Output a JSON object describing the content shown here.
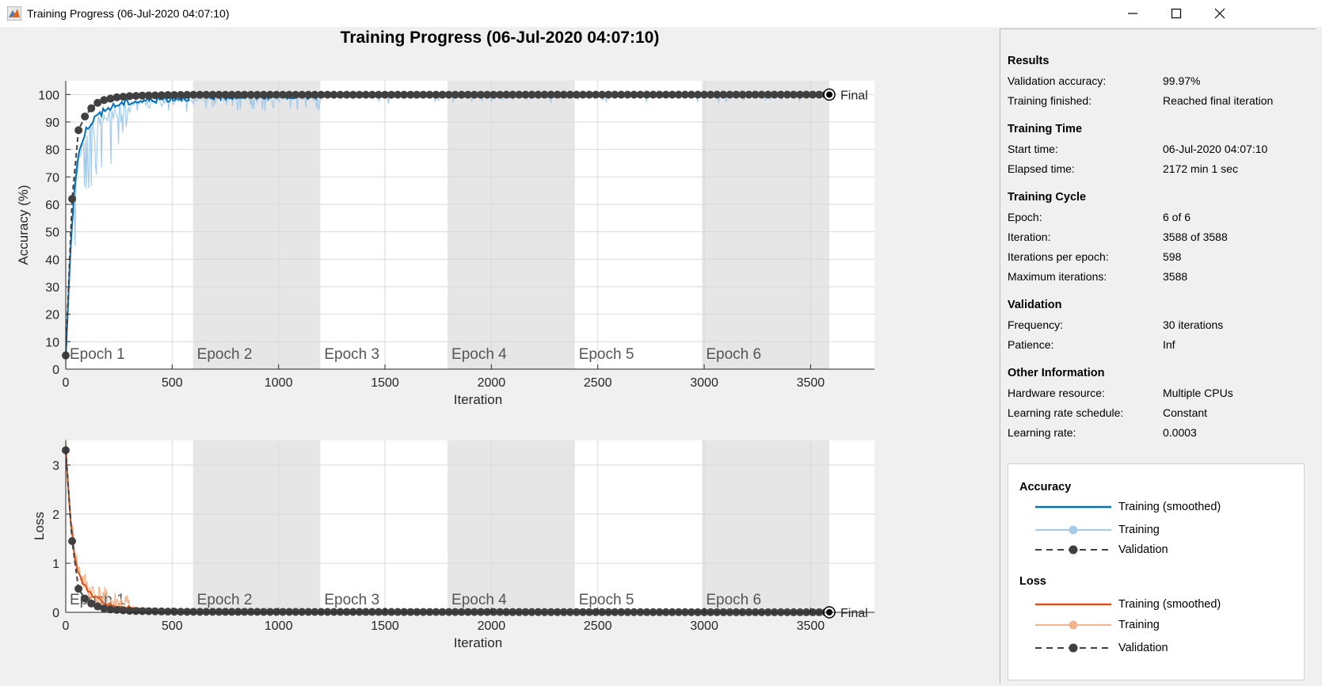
{
  "window": {
    "title": "Training Progress (06-Jul-2020 04:07:10)",
    "controls": [
      "minimize-icon",
      "maximize-icon",
      "close-icon"
    ]
  },
  "main_title": "Training Progress (06-Jul-2020 04:07:10)",
  "colors": {
    "accuracy_smoothed": "#0072bd",
    "accuracy_training": "#a6cbe9",
    "loss_smoothed": "#d95319",
    "loss_training": "#f2b48f",
    "validation": "#404040",
    "epoch_shade": "#e6e6e6"
  },
  "chart_data": [
    {
      "type": "line",
      "ylabel": "Accuracy (%)",
      "xlabel": "Iteration",
      "xlim": [
        0,
        3800
      ],
      "ylim": [
        0,
        105
      ],
      "xticks": [
        0,
        500,
        1000,
        1500,
        2000,
        2500,
        3000,
        3500
      ],
      "yticks": [
        0,
        10,
        20,
        30,
        40,
        50,
        60,
        70,
        80,
        90,
        100
      ],
      "grid": true,
      "epochs": [
        "Epoch 1",
        "Epoch 2",
        "Epoch 3",
        "Epoch 4",
        "Epoch 5",
        "Epoch 6"
      ],
      "iterations_per_epoch": 598,
      "final_label": "Final",
      "final_value": 99.97,
      "validation": {
        "x": [
          0,
          30,
          60,
          90,
          120,
          150,
          180,
          210,
          240,
          270,
          300,
          360,
          420,
          480,
          540,
          600,
          3588
        ],
        "y": [
          5,
          62,
          87,
          92,
          95,
          97,
          98,
          98.5,
          99,
          99.2,
          99.4,
          99.6,
          99.7,
          99.8,
          99.85,
          99.9,
          99.97
        ]
      },
      "smoothed": {
        "x": [
          0,
          20,
          40,
          60,
          80,
          100,
          130,
          160,
          200,
          250,
          300,
          400,
          500,
          600,
          800,
          1000,
          1500,
          2000,
          2500,
          3000,
          3588
        ],
        "y": [
          5,
          40,
          65,
          78,
          84,
          88,
          91,
          93,
          95,
          96.5,
          97.3,
          98,
          98.6,
          99,
          99.3,
          99.5,
          99.6,
          99.7,
          99.75,
          99.8,
          99.85
        ]
      }
    },
    {
      "type": "line",
      "ylabel": "Loss",
      "xlabel": "Iteration",
      "xlim": [
        0,
        3800
      ],
      "ylim": [
        0,
        3.5
      ],
      "xticks": [
        0,
        500,
        1000,
        1500,
        2000,
        2500,
        3000,
        3500
      ],
      "yticks": [
        0,
        1,
        2,
        3
      ],
      "grid": true,
      "epochs": [
        "Epoch 1",
        "Epoch 2",
        "Epoch 3",
        "Epoch 4",
        "Epoch 5",
        "Epoch 6"
      ],
      "iterations_per_epoch": 598,
      "final_label": "Final",
      "final_value": 0.001,
      "validation": {
        "x": [
          0,
          30,
          60,
          90,
          120,
          150,
          180,
          210,
          240,
          270,
          300,
          360,
          420,
          480,
          540,
          600,
          3588
        ],
        "y": [
          3.3,
          1.45,
          0.48,
          0.28,
          0.18,
          0.12,
          0.08,
          0.06,
          0.05,
          0.04,
          0.03,
          0.025,
          0.02,
          0.015,
          0.012,
          0.01,
          0.001
        ]
      },
      "smoothed": {
        "x": [
          0,
          20,
          40,
          60,
          80,
          100,
          130,
          160,
          200,
          250,
          300,
          400,
          500,
          600,
          800,
          1000,
          1500,
          2000,
          2500,
          3000,
          3588
        ],
        "y": [
          3.3,
          2.0,
          1.2,
          0.8,
          0.6,
          0.45,
          0.33,
          0.25,
          0.17,
          0.12,
          0.09,
          0.06,
          0.045,
          0.035,
          0.025,
          0.02,
          0.015,
          0.012,
          0.01,
          0.008,
          0.006
        ]
      }
    }
  ],
  "results": {
    "title": "Results",
    "items": [
      {
        "k": "Validation accuracy:",
        "v": "99.97%"
      },
      {
        "k": "Training finished:",
        "v": "Reached final iteration"
      }
    ]
  },
  "training_time": {
    "title": "Training Time",
    "items": [
      {
        "k": "Start time:",
        "v": "06-Jul-2020 04:07:10"
      },
      {
        "k": "Elapsed time:",
        "v": "2172 min 1 sec"
      }
    ]
  },
  "training_cycle": {
    "title": "Training Cycle",
    "items": [
      {
        "k": "Epoch:",
        "v": "6 of 6"
      },
      {
        "k": "Iteration:",
        "v": "3588 of 3588"
      },
      {
        "k": "Iterations per epoch:",
        "v": "598"
      },
      {
        "k": "Maximum iterations:",
        "v": "3588"
      }
    ]
  },
  "validation_info": {
    "title": "Validation",
    "items": [
      {
        "k": "Frequency:",
        "v": "30 iterations"
      },
      {
        "k": "Patience:",
        "v": "Inf"
      }
    ]
  },
  "other_info": {
    "title": "Other Information",
    "items": [
      {
        "k": "Hardware resource:",
        "v": "Multiple CPUs"
      },
      {
        "k": "Learning rate schedule:",
        "v": "Constant"
      },
      {
        "k": "Learning rate:",
        "v": "0.0003"
      }
    ]
  },
  "legend": {
    "accuracy_title": "Accuracy",
    "loss_title": "Loss",
    "smoothed": "Training (smoothed)",
    "training": "Training",
    "validation": "Validation"
  }
}
